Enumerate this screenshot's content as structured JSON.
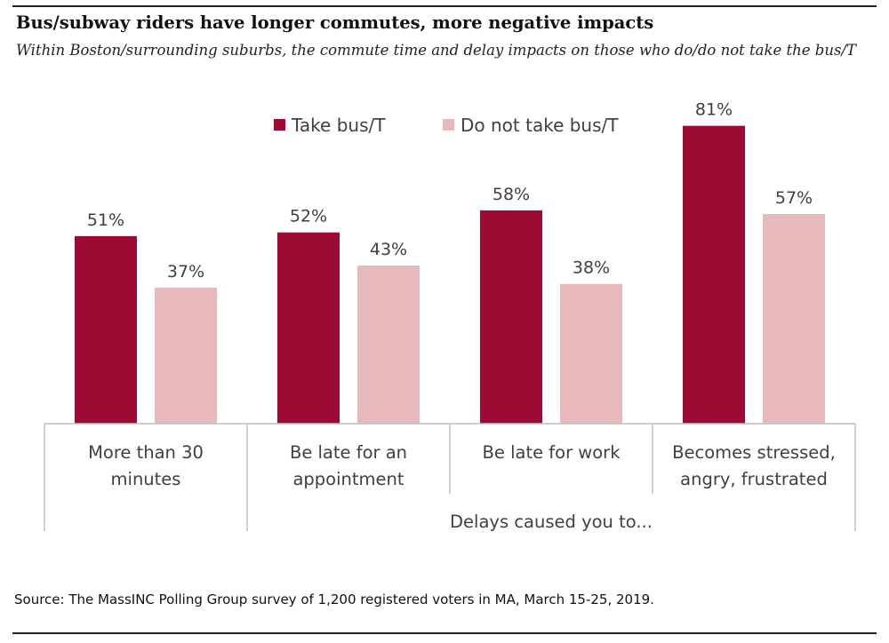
{
  "title": "Bus/subway riders have longer commutes, more negative impacts",
  "subtitle": "Within Boston/surrounding suburbs, the commute time and delay impacts on those who do/do not take the bus/T",
  "source": "Source: The MassINC Polling Group survey of 1,200 registered voters in MA, March 15-25, 2019.",
  "chart_data": {
    "type": "bar",
    "categories": [
      [
        "More than 30",
        "minutes"
      ],
      [
        "Be late for an",
        "appointment"
      ],
      [
        "Be late for work"
      ],
      [
        "Becomes stressed,",
        "angry, frustrated"
      ]
    ],
    "group_label": "Delays caused you to...",
    "series": [
      {
        "name": "Take bus/T",
        "color": "#9b0a33",
        "values": [
          51,
          52,
          58,
          81
        ],
        "labels": [
          "51%",
          "52%",
          "58%",
          "81%"
        ]
      },
      {
        "name": "Do not take bus/T",
        "color": "#e8b9bc",
        "values": [
          37,
          43,
          38,
          57
        ],
        "labels": [
          "37%",
          "43%",
          "38%",
          "57%"
        ]
      }
    ],
    "ylim": [
      0,
      100
    ],
    "grid": false,
    "legend_position": "top"
  }
}
